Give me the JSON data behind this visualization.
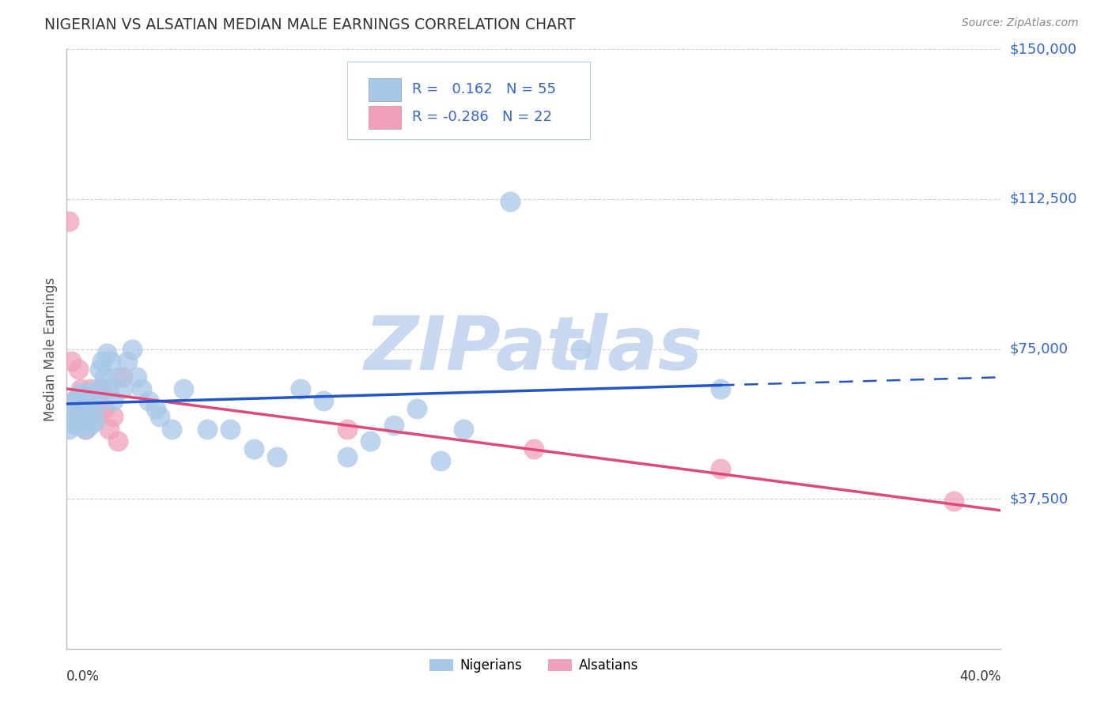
{
  "title": "NIGERIAN VS ALSATIAN MEDIAN MALE EARNINGS CORRELATION CHART",
  "source": "Source: ZipAtlas.com",
  "ylabel": "Median Male Earnings",
  "xlim": [
    0.0,
    0.4
  ],
  "ylim": [
    0,
    150000
  ],
  "ytick_positions": [
    37500,
    75000,
    112500,
    150000
  ],
  "ytick_labels": [
    "$37,500",
    "$75,000",
    "$112,500",
    "$150,000"
  ],
  "nigerian_color": "#a8c8e8",
  "alsatian_color": "#f0a0b8",
  "nigerian_line_color": "#2255cc",
  "alsatian_line_color": "#e04878",
  "watermark": "ZIPatlas",
  "watermark_color": "#c8d8f0",
  "legend_text_color": "#3366cc",
  "legend_R_nigerian": "R =   0.162",
  "legend_N_nigerian": "N = 55",
  "legend_R_alsatian": "R = -0.286",
  "legend_N_alsatian": "N = 22",
  "grid_color": "#c8d0e0",
  "background_color": "#ffffff",
  "title_color": "#333333",
  "axis_color": "#bbbbbb",
  "ylabel_color": "#555555",
  "yticklabel_color": "#3366cc",
  "xticklabel_color": "#333333",
  "source_color": "#888888",
  "nigerian_x": [
    0.001,
    0.002,
    0.003,
    0.003,
    0.004,
    0.004,
    0.005,
    0.005,
    0.006,
    0.006,
    0.007,
    0.007,
    0.008,
    0.008,
    0.009,
    0.009,
    0.01,
    0.01,
    0.011,
    0.012,
    0.012,
    0.013,
    0.014,
    0.015,
    0.016,
    0.017,
    0.018,
    0.019,
    0.02,
    0.022,
    0.024,
    0.026,
    0.028,
    0.03,
    0.032,
    0.035,
    0.038,
    0.04,
    0.045,
    0.05,
    0.06,
    0.07,
    0.08,
    0.09,
    0.1,
    0.11,
    0.12,
    0.13,
    0.14,
    0.15,
    0.16,
    0.17,
    0.19,
    0.22,
    0.28
  ],
  "nigerian_y": [
    55000,
    57000,
    59000,
    62000,
    56000,
    60000,
    58000,
    63000,
    61000,
    64000,
    57000,
    60000,
    55000,
    62000,
    59000,
    64000,
    56000,
    61000,
    63000,
    60000,
    57000,
    65000,
    70000,
    72000,
    68000,
    74000,
    65000,
    72000,
    62000,
    68000,
    65000,
    72000,
    75000,
    68000,
    65000,
    62000,
    60000,
    58000,
    55000,
    65000,
    55000,
    55000,
    50000,
    48000,
    65000,
    62000,
    48000,
    52000,
    56000,
    60000,
    47000,
    55000,
    112000,
    75000,
    65000
  ],
  "alsatian_x": [
    0.001,
    0.002,
    0.003,
    0.004,
    0.005,
    0.006,
    0.007,
    0.008,
    0.009,
    0.01,
    0.012,
    0.013,
    0.015,
    0.016,
    0.018,
    0.02,
    0.022,
    0.024,
    0.12,
    0.2,
    0.28,
    0.38
  ],
  "alsatian_y": [
    107000,
    72000,
    62000,
    60000,
    70000,
    65000,
    60000,
    55000,
    62000,
    65000,
    58000,
    60000,
    65000,
    60000,
    55000,
    58000,
    52000,
    68000,
    55000,
    50000,
    45000,
    37000
  ],
  "nig_slope": 55000,
  "nig_intercept": 57000,
  "als_slope": -80000,
  "als_intercept": 68000
}
